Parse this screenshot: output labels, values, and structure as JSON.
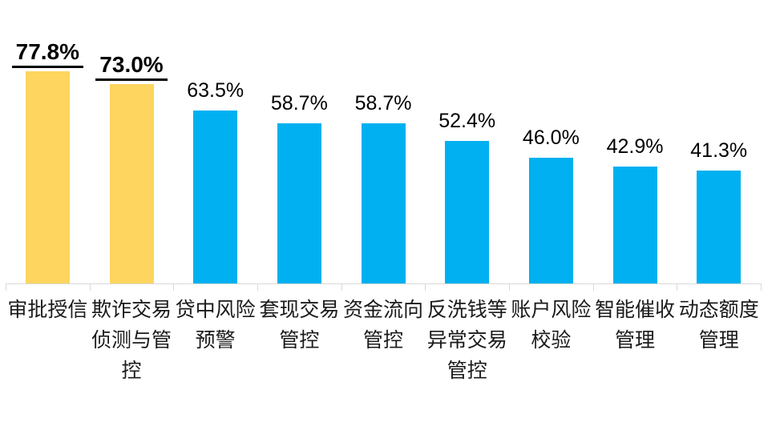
{
  "chart_data": {
    "type": "bar",
    "orientation": "vertical",
    "title": "",
    "xlabel": "",
    "ylabel": "",
    "ylim": [
      0,
      100
    ],
    "grid": false,
    "legend": null,
    "categories": [
      "审批授信",
      "欺诈交易侦测与管控",
      "贷中风险预警",
      "套现交易管控",
      "资金流向管控",
      "反洗钱等异常交易管控",
      "账户风险校验",
      "智能催收管理",
      "动态额度管理"
    ],
    "values": [
      77.8,
      73.0,
      63.5,
      58.7,
      58.7,
      52.4,
      46.0,
      42.9,
      41.3
    ],
    "value_labels": [
      "77.8%",
      "73.0%",
      "63.5%",
      "58.7%",
      "58.7%",
      "52.4%",
      "46.0%",
      "42.9%",
      "41.3%"
    ],
    "highlighted": [
      true,
      true,
      false,
      false,
      false,
      false,
      false,
      false,
      false
    ],
    "colors": {
      "highlight_bar": "#FDD55F",
      "default_bar": "#00B0F0",
      "axis": "#D9D9D9",
      "value_text": "#000000",
      "category_text": "#1A1A1A",
      "background": "#FFFFFF"
    }
  }
}
